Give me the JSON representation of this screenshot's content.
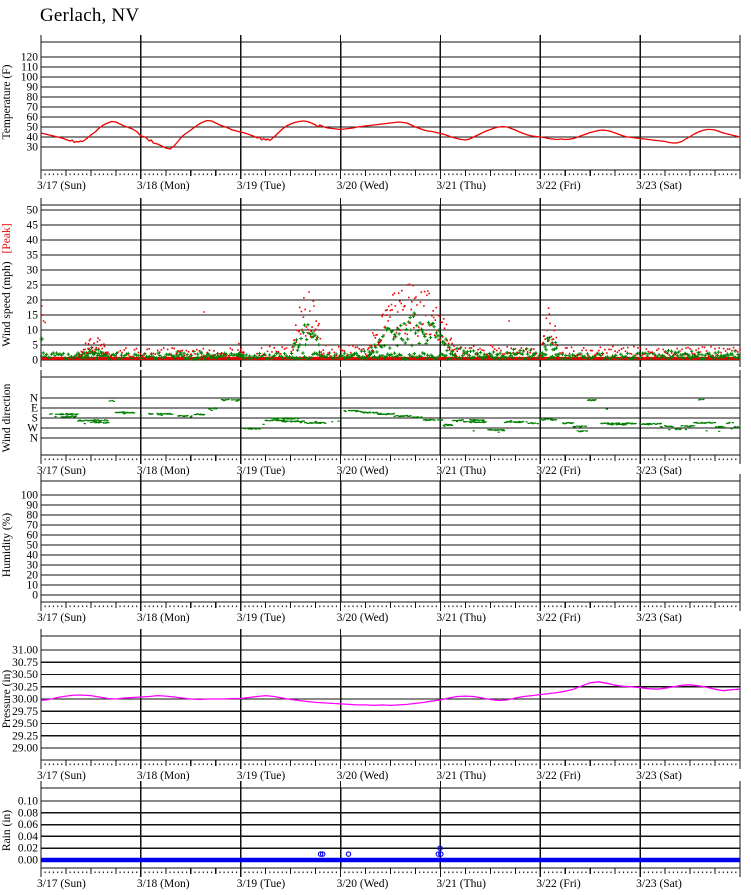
{
  "title": "Gerlach, NV",
  "chart_data": {
    "type": "line",
    "station": "Gerlach, NV",
    "x_axis": {
      "day_labels": [
        "3/17 (Sun)",
        "3/18 (Mon)",
        "3/19 (Tue)",
        "3/20 (Wed)",
        "3/21 (Thu)",
        "3/22 (Fri)",
        "3/23 (Sat)"
      ],
      "hours_span": 168,
      "minor_tick_hours": 1,
      "medium_tick_hours": 6,
      "major_tick_hours": 24
    },
    "panels": [
      {
        "key": "temperature",
        "y_label": "Temperature (F)",
        "y_ticks": [
          "120",
          "110",
          "100",
          "90",
          "80",
          "70",
          "60",
          "50",
          "40",
          "30"
        ],
        "y_tick_values": [
          120,
          110,
          100,
          90,
          80,
          70,
          60,
          50,
          40,
          30
        ],
        "line_color": "#ee0000",
        "show_date_labels": true,
        "series_hours": [
          0,
          1,
          2,
          3,
          4,
          5,
          6,
          7,
          7.5,
          8,
          8.5,
          9,
          9.5,
          10,
          10.5,
          11,
          12,
          13,
          14,
          15,
          16,
          17,
          18,
          19,
          20,
          21,
          22,
          23,
          24,
          25,
          25.5,
          26,
          26.5,
          27,
          28,
          29,
          30,
          30.5,
          31,
          32,
          33,
          34,
          35,
          36,
          37,
          38,
          39,
          40,
          41,
          42,
          43,
          44,
          45,
          46,
          47,
          48,
          49,
          50,
          51,
          52,
          52.5,
          53,
          53.5,
          54,
          54.5,
          55,
          56,
          57,
          58,
          59,
          60,
          61,
          62,
          63,
          64,
          65,
          66,
          66.5,
          67,
          67.5,
          68,
          69,
          70,
          71,
          72,
          73,
          74,
          75,
          76,
          77,
          78,
          79,
          80,
          81,
          82,
          83,
          84,
          85,
          86,
          87,
          88,
          89,
          90,
          91,
          92,
          93,
          94,
          95,
          96,
          97,
          98,
          99,
          100,
          101,
          102,
          103,
          104,
          105,
          106,
          107,
          108,
          109,
          110,
          111,
          112,
          113,
          114,
          115,
          116,
          117,
          118,
          119,
          120,
          121,
          122,
          123,
          124,
          125,
          126,
          127,
          128,
          129,
          130,
          131,
          132,
          133,
          134,
          135,
          136,
          137,
          138,
          139,
          140,
          141,
          142,
          143,
          144,
          145,
          146,
          147,
          148,
          149,
          150,
          151,
          152,
          153,
          154,
          155,
          156,
          157,
          158,
          159,
          160,
          161,
          162,
          163,
          164,
          165,
          166,
          167,
          168
        ],
        "series_values": [
          44,
          43,
          42,
          41,
          40,
          39,
          37.5,
          36,
          37,
          34.5,
          35.5,
          35,
          36,
          35.5,
          37,
          38.5,
          42,
          45,
          49,
          52,
          54,
          55.5,
          55,
          53,
          51,
          49.5,
          48,
          45.5,
          41,
          40,
          38.5,
          36,
          37,
          34,
          33,
          31,
          29,
          28.5,
          28,
          31,
          36,
          41,
          44,
          47,
          50,
          53,
          55,
          56.5,
          56,
          54,
          52,
          50.5,
          49,
          47,
          46,
          45,
          44,
          42.5,
          41,
          39,
          40,
          37,
          38.5,
          37,
          38,
          36.5,
          40,
          44,
          48,
          51,
          53,
          54.5,
          55.5,
          56,
          55.5,
          54,
          52,
          50,
          52,
          51,
          50,
          49,
          48.5,
          48,
          47.5,
          48,
          48.5,
          49,
          50,
          50.5,
          51,
          51.5,
          52,
          52.5,
          53,
          53.5,
          54,
          54.5,
          55,
          54.5,
          54,
          52,
          50,
          48.5,
          47,
          46,
          45.5,
          44.5,
          43.5,
          42.5,
          41,
          39.5,
          38.5,
          37.5,
          37,
          38,
          40,
          42,
          44,
          46,
          47.5,
          49,
          50,
          50.5,
          50,
          48.5,
          47,
          45,
          43.5,
          42,
          41,
          40.5,
          40,
          39.5,
          38.5,
          38,
          37.5,
          38,
          37.5,
          37.8,
          38.5,
          40,
          41.5,
          43,
          44.5,
          45.5,
          46.5,
          47,
          46.5,
          45.5,
          44,
          42.5,
          41,
          40,
          39.5,
          39,
          38.5,
          38,
          37.5,
          37,
          36.5,
          36,
          35.5,
          34.5,
          34,
          34.2,
          35.5,
          38,
          40.5,
          43,
          45,
          46.5,
          47.5,
          47.5,
          47,
          45.5,
          44,
          43,
          42,
          41,
          40
        ]
      },
      {
        "key": "wind_speed",
        "y_label": "Wind speed (mph)",
        "y_label_peak": "[Peak]",
        "y_label_peak_color": "#ee0000",
        "y_ticks": [
          "50",
          "45",
          "40",
          "35",
          "30",
          "25",
          "20",
          "15",
          "10",
          "5",
          "0"
        ],
        "y_tick_values": [
          50,
          45,
          40,
          35,
          30,
          25,
          20,
          15,
          10,
          5,
          0
        ],
        "avg_color": "#008000",
        "peak_color": "#ee0000",
        "show_date_labels": false,
        "baseline": {
          "peak_band_value": 0.55,
          "avg_band_max": 2.1
        },
        "avg_dots": [
          [
            0.2,
            7
          ]
        ],
        "peak_dots": [
          [
            0.2,
            18
          ],
          [
            0.35,
            15
          ],
          [
            0.6,
            13
          ],
          [
            1.0,
            12.5
          ],
          [
            39.2,
            16
          ],
          [
            112.5,
            13
          ]
        ],
        "avg_bursts": [
          [
            8.5,
            17,
            4.5,
            0
          ],
          [
            32,
            44,
            3,
            1
          ],
          [
            47,
            49,
            4,
            0
          ],
          [
            60,
            67.5,
            15,
            0
          ],
          [
            73,
            78,
            3,
            1
          ],
          [
            78,
            100,
            16,
            0
          ],
          [
            100,
            119,
            4,
            1
          ],
          [
            120,
            124.5,
            10,
            0
          ],
          [
            150,
            168,
            3.2,
            1
          ]
        ],
        "peak_bursts": [
          [
            8.5,
            17,
            8,
            0
          ],
          [
            18,
            46,
            4,
            1
          ],
          [
            47,
            49,
            7,
            0
          ],
          [
            52,
            59,
            4.5,
            1
          ],
          [
            60,
            68,
            25,
            0
          ],
          [
            68,
            78,
            5,
            1
          ],
          [
            78,
            100,
            27,
            0
          ],
          [
            100,
            119,
            5,
            1
          ],
          [
            120,
            124.5,
            18,
            0
          ],
          [
            125,
            168,
            4.5,
            1
          ]
        ]
      },
      {
        "key": "wind_direction",
        "y_label": "Wind direction",
        "y_ticks": [
          "N",
          "E",
          "S",
          "W",
          "N"
        ],
        "dot_color": "#008000",
        "show_date_labels": true,
        "runs": [
          [
            2,
            9,
            1.6
          ],
          [
            5,
            8.5,
            1.85
          ],
          [
            9,
            16,
            2.25
          ],
          [
            12,
            16.2,
            2.45
          ],
          [
            16.5,
            17.8,
            0.3
          ],
          [
            18,
            22.5,
            1.45
          ],
          [
            26,
            32,
            1.6
          ],
          [
            33,
            36.5,
            1.8
          ],
          [
            37,
            39.5,
            1.65
          ],
          [
            40.5,
            42.5,
            1.05
          ],
          [
            43.5,
            47.8,
            0.2
          ],
          [
            48.7,
            53,
            3.05
          ],
          [
            54,
            58.5,
            2.25
          ],
          [
            55.5,
            62,
            2.05
          ],
          [
            58,
            63.5,
            2.35
          ],
          [
            63.5,
            68.5,
            2.5
          ],
          [
            73,
            77,
            1.3
          ],
          [
            77,
            81,
            1.45
          ],
          [
            81,
            85,
            1.6
          ],
          [
            85,
            89,
            1.8
          ],
          [
            89,
            92,
            1.95
          ],
          [
            92,
            96.5,
            2.2
          ],
          [
            96.8,
            99,
            2.7
          ],
          [
            99,
            101.5,
            2.25
          ],
          [
            101.5,
            107,
            2.4
          ],
          [
            103,
            106.5,
            2.2
          ],
          [
            107.5,
            111.5,
            3.2
          ],
          [
            111.5,
            117,
            2.4
          ],
          [
            117,
            119.5,
            2.5
          ],
          [
            120.2,
            124,
            2.15
          ],
          [
            125.5,
            128,
            2.5
          ],
          [
            128,
            131,
            2.85
          ],
          [
            129,
            131.2,
            3.3
          ],
          [
            131.3,
            133.5,
            0.22
          ],
          [
            134.5,
            143,
            2.55
          ],
          [
            137,
            140.5,
            2.65
          ],
          [
            144,
            149,
            2.6
          ],
          [
            149,
            152,
            2.82
          ],
          [
            152.3,
            153.8,
            3.1
          ],
          [
            154,
            157,
            2.82
          ],
          [
            157,
            162,
            2.5
          ],
          [
            158.2,
            159.2,
            0.2
          ],
          [
            162.3,
            164.5,
            2.9
          ],
          [
            164.5,
            166.3,
            2.5
          ],
          [
            166.5,
            168,
            2.9
          ]
        ],
        "dots": [
          [
            3.5,
            1.9
          ],
          [
            7,
            2.0
          ],
          [
            10.5,
            2.6
          ],
          [
            20,
            1.6
          ],
          [
            24,
            1.7
          ],
          [
            29,
            1.75
          ],
          [
            36,
            1.95
          ],
          [
            41,
            1.2
          ],
          [
            47,
            0.35
          ],
          [
            53.5,
            2.6
          ],
          [
            59,
            2.0
          ],
          [
            62.5,
            2.45
          ],
          [
            66,
            2.3
          ],
          [
            70,
            2.4
          ],
          [
            71.5,
            2.3
          ],
          [
            97,
            2.75
          ],
          [
            100,
            2.3
          ],
          [
            104,
            3.25
          ],
          [
            110,
            3.35
          ],
          [
            113,
            2.3
          ],
          [
            118,
            2.45
          ],
          [
            126,
            2.6
          ],
          [
            130,
            3.35
          ],
          [
            132.5,
            0.25
          ],
          [
            136,
            1.1
          ],
          [
            146,
            2.7
          ],
          [
            151,
            3.1
          ],
          [
            155,
            3.15
          ],
          [
            160,
            3.25
          ],
          [
            163,
            3.3
          ],
          [
            166,
            3.1
          ]
        ]
      },
      {
        "key": "humidity",
        "y_label": "Humidity (%)",
        "y_ticks": [
          "100",
          "90",
          "80",
          "70",
          "60",
          "50",
          "40",
          "30",
          "20",
          "10",
          "0"
        ],
        "y_tick_values": [
          100,
          90,
          80,
          70,
          60,
          50,
          40,
          30,
          20,
          10,
          0
        ],
        "show_date_labels": true,
        "series_hours": [],
        "series_values": []
      },
      {
        "key": "pressure",
        "y_label": "Pressure (in)",
        "y_ticks": [
          "31.00",
          "30.75",
          "30.50",
          "30.25",
          "30.00",
          "29.75",
          "29.50",
          "29.25",
          "29.00"
        ],
        "y_tick_values": [
          31.0,
          30.75,
          30.5,
          30.25,
          30.0,
          29.75,
          29.5,
          29.25,
          29.0
        ],
        "line_color": "#ff00ff",
        "show_date_labels": true,
        "hours_start": 0,
        "hours_step": 2,
        "series_values": [
          29.97,
          29.99,
          30.03,
          30.06,
          30.08,
          30.08,
          30.07,
          30.04,
          30.01,
          30.0,
          30.02,
          30.03,
          30.04,
          30.05,
          30.07,
          30.06,
          30.04,
          30.02,
          30.0,
          29.99,
          30.0,
          30.0,
          30.0,
          30.01,
          30.01,
          30.03,
          30.05,
          30.07,
          30.05,
          30.02,
          29.99,
          29.97,
          29.95,
          29.93,
          29.92,
          29.91,
          29.9,
          29.89,
          29.88,
          29.88,
          29.87,
          29.88,
          29.87,
          29.88,
          29.89,
          29.91,
          29.93,
          29.96,
          29.98,
          30.02,
          30.05,
          30.06,
          30.05,
          30.02,
          29.99,
          29.97,
          29.98,
          30.02,
          30.05,
          30.07,
          30.09,
          30.11,
          30.13,
          30.16,
          30.2,
          30.27,
          30.33,
          30.35,
          30.32,
          30.28,
          30.26,
          30.25,
          30.23,
          30.21,
          30.2,
          30.22,
          30.25,
          30.28,
          30.29,
          30.27,
          30.24,
          30.2,
          30.17,
          30.19,
          30.2
        ]
      },
      {
        "key": "rain",
        "y_label": "Rain (in)",
        "y_ticks": [
          "0.10",
          "0.08",
          "0.06",
          "0.04",
          "0.02",
          "0.00"
        ],
        "y_tick_values": [
          0.1,
          0.08,
          0.06,
          0.04,
          0.02,
          0.0
        ],
        "line_color": "#0000ee",
        "show_date_labels": true,
        "baseline_value": 0.0,
        "events": [
          [
            67.2,
            0.01
          ],
          [
            67.7,
            0.01
          ],
          [
            73.9,
            0.01
          ],
          [
            95.5,
            0.01
          ],
          [
            96.1,
            0.01
          ],
          [
            95.9,
            0.02
          ]
        ]
      }
    ]
  }
}
